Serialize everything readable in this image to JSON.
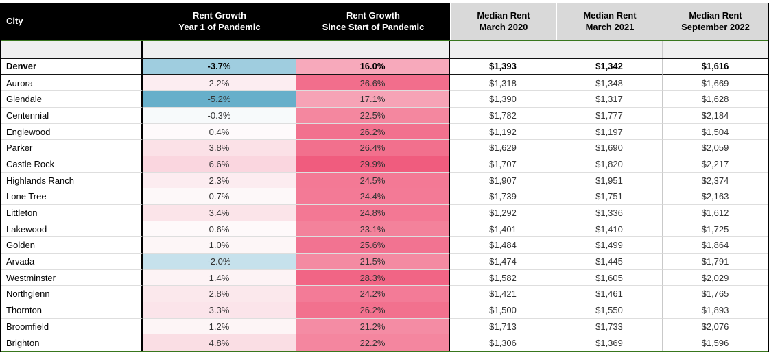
{
  "colors": {
    "header_left_bg": "#000000",
    "header_left_text": "#FFFFFF",
    "header_right_bg": "#D9D9D9",
    "header_right_text": "#000000",
    "accent_border_green": "#38761D",
    "heavy_border_black": "#000000",
    "spacer_row_bg": "#EFEFEF",
    "gridline": "#C9C9C9",
    "negative_scale_extreme": "#67AFCA",
    "positive_scale_extreme": "#F05C7E",
    "neutral_scale": "#FFFFFF"
  },
  "chart_data": {
    "type": "table",
    "title": "Rent growth and median rent by Denver-area city",
    "columns": [
      "City",
      "Rent Growth\nYear 1 of Pandemic",
      "Rent Growth\nSince Start of Pandemic",
      "Median Rent\nMarch 2020",
      "Median Rent\nMarch 2021",
      "Median Rent\nSeptember 2022"
    ],
    "rows": [
      {
        "city": "Denver",
        "year1": "-3.7%",
        "since": "16.0%",
        "m2020": "$1,393",
        "m2021": "$1,342",
        "m2022": "$1,616",
        "year1_bg": "#9FCDDF",
        "since_bg": "#F7A9BB",
        "bold": true
      },
      {
        "city": "Aurora",
        "year1": "2.2%",
        "since": "26.6%",
        "m2020": "$1,318",
        "m2021": "$1,348",
        "m2022": "$1,669",
        "year1_bg": "#FCEDF1",
        "since_bg": "#F26E8C",
        "bold": false
      },
      {
        "city": "Glendale",
        "year1": "-5.2%",
        "since": "17.1%",
        "m2020": "$1,390",
        "m2021": "$1,317",
        "m2022": "$1,628",
        "year1_bg": "#67AFCA",
        "since_bg": "#F6A3B6",
        "bold": false
      },
      {
        "city": "Centennial",
        "year1": "-0.3%",
        "since": "22.5%",
        "m2020": "$1,782",
        "m2021": "$1,777",
        "m2022": "$2,184",
        "year1_bg": "#F7FAFB",
        "since_bg": "#F4879F",
        "bold": false
      },
      {
        "city": "Englewood",
        "year1": "0.4%",
        "since": "26.2%",
        "m2020": "$1,192",
        "m2021": "$1,197",
        "m2022": "$1,504",
        "year1_bg": "#FEFAFB",
        "since_bg": "#F2718E",
        "bold": false
      },
      {
        "city": "Parker",
        "year1": "3.8%",
        "since": "26.4%",
        "m2020": "$1,629",
        "m2021": "$1,690",
        "m2022": "$2,059",
        "year1_bg": "#FBE1E7",
        "since_bg": "#F2708D",
        "bold": false
      },
      {
        "city": "Castle Rock",
        "year1": "6.6%",
        "since": "29.9%",
        "m2020": "$1,707",
        "m2021": "$1,820",
        "m2022": "$2,217",
        "year1_bg": "#FAD6DF",
        "since_bg": "#F05C7E",
        "bold": false
      },
      {
        "city": "Highlands Ranch",
        "year1": "2.3%",
        "since": "24.5%",
        "m2020": "$1,907",
        "m2021": "$1,951",
        "m2022": "$2,374",
        "year1_bg": "#FCECF0",
        "since_bg": "#F37995",
        "bold": false
      },
      {
        "city": "Lone Tree",
        "year1": "0.7%",
        "since": "24.4%",
        "m2020": "$1,739",
        "m2021": "$1,751",
        "m2022": "$2,163",
        "year1_bg": "#FDF8F9",
        "since_bg": "#F37A96",
        "bold": false
      },
      {
        "city": "Littleton",
        "year1": "3.4%",
        "since": "24.8%",
        "m2020": "$1,292",
        "m2021": "$1,336",
        "m2022": "$1,612",
        "year1_bg": "#FBE4E9",
        "since_bg": "#F37894",
        "bold": false
      },
      {
        "city": "Lakewood",
        "year1": "0.6%",
        "since": "23.1%",
        "m2020": "$1,401",
        "m2021": "$1,410",
        "m2022": "$1,725",
        "year1_bg": "#FEF9FA",
        "since_bg": "#F3829B",
        "bold": false
      },
      {
        "city": "Golden",
        "year1": "1.0%",
        "since": "25.6%",
        "m2020": "$1,484",
        "m2021": "$1,499",
        "m2022": "$1,864",
        "year1_bg": "#FDF6F7",
        "since_bg": "#F27391",
        "bold": false
      },
      {
        "city": "Arvada",
        "year1": "-2.0%",
        "since": "21.5%",
        "m2020": "$1,474",
        "m2021": "$1,445",
        "m2022": "$1,791",
        "year1_bg": "#C6E1EC",
        "since_bg": "#F48AA2",
        "bold": false
      },
      {
        "city": "Westminster",
        "year1": "1.4%",
        "since": "28.3%",
        "m2020": "$1,582",
        "m2021": "$1,605",
        "m2022": "$2,029",
        "year1_bg": "#FDF3F5",
        "since_bg": "#F16585",
        "bold": false
      },
      {
        "city": "Northglenn",
        "year1": "2.8%",
        "since": "24.2%",
        "m2020": "$1,421",
        "m2021": "$1,461",
        "m2022": "$1,765",
        "year1_bg": "#FBE8EC",
        "since_bg": "#F37B97",
        "bold": false
      },
      {
        "city": "Thornton",
        "year1": "3.3%",
        "since": "26.2%",
        "m2020": "$1,500",
        "m2021": "$1,550",
        "m2022": "$1,893",
        "year1_bg": "#FBE4EA",
        "since_bg": "#F2718E",
        "bold": false
      },
      {
        "city": "Broomfield",
        "year1": "1.2%",
        "since": "21.2%",
        "m2020": "$1,713",
        "m2021": "$1,733",
        "m2022": "$2,076",
        "year1_bg": "#FDF5F6",
        "since_bg": "#F48CA4",
        "bold": false
      },
      {
        "city": "Brighton",
        "year1": "4.8%",
        "since": "22.2%",
        "m2020": "$1,306",
        "m2021": "$1,369",
        "m2022": "$1,596",
        "year1_bg": "#FADEE4",
        "since_bg": "#F4869F",
        "bold": false
      }
    ]
  }
}
